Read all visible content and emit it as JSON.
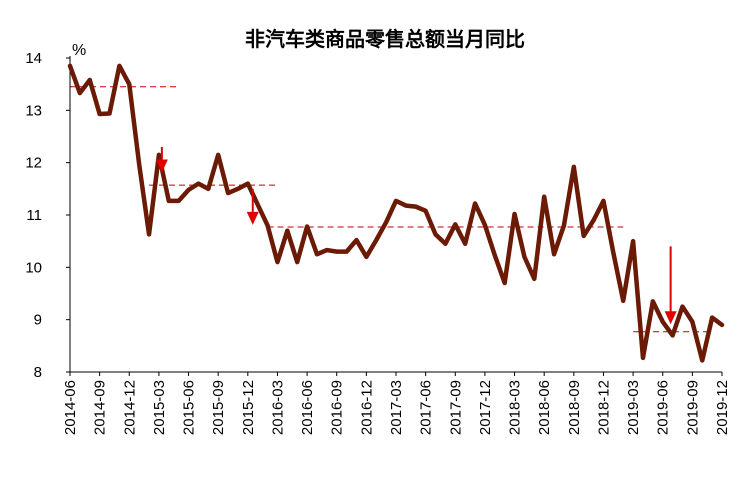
{
  "chart_data": {
    "type": "line",
    "title": "非汽车类商品零售总额当月同比",
    "unit_label": "%",
    "ylim": [
      8,
      14
    ],
    "y_ticks": [
      "8",
      "9",
      "10",
      "11",
      "12",
      "13",
      "14"
    ],
    "x_tick_labels": [
      "2014-06",
      "2014-09",
      "2014-12",
      "2015-03",
      "2015-06",
      "2015-09",
      "2015-12",
      "2016-03",
      "2016-06",
      "2016-09",
      "2016-12",
      "2017-03",
      "2017-06",
      "2017-09",
      "2017-12",
      "2018-03",
      "2018-06",
      "2018-09",
      "2018-12",
      "2019-03",
      "2019-06",
      "2019-09",
      "2019-12"
    ],
    "series": [
      {
        "color": "#6b1a05",
        "values": [
          13.85,
          13.33,
          13.58,
          12.93,
          12.94,
          13.85,
          13.5,
          11.97,
          10.63,
          12.15,
          11.27,
          11.27,
          11.48,
          11.6,
          11.5,
          12.15,
          11.42,
          11.5,
          11.6,
          11.2,
          10.8,
          10.1,
          10.7,
          10.1,
          10.78,
          10.25,
          10.33,
          10.3,
          10.3,
          10.52,
          10.2,
          10.52,
          10.86,
          11.27,
          11.18,
          11.16,
          11.08,
          10.63,
          10.45,
          10.82,
          10.45,
          11.22,
          10.81,
          10.23,
          9.7,
          11.02,
          10.2,
          9.78,
          11.35,
          10.25,
          10.8,
          11.92,
          10.6,
          10.9,
          11.27,
          10.28,
          9.36,
          10.5,
          8.27,
          9.35,
          8.96,
          8.7,
          9.25,
          8.96,
          8.22,
          9.04,
          8.9
        ]
      }
    ],
    "reference_lines": [
      {
        "y": 13.45,
        "x_start": 0,
        "x_end": 11
      },
      {
        "y": 11.57,
        "x_start": 8,
        "x_end": 21
      },
      {
        "y": 10.77,
        "x_start": 20,
        "x_end": 56
      },
      {
        "y": 8.77,
        "x_start": 57,
        "x_end": 65
      }
    ],
    "arrows": [
      {
        "x": 9.3,
        "y_from": 12.3,
        "y_to": 11.85
      },
      {
        "x": 18.5,
        "y_from": 11.5,
        "y_to": 10.85
      },
      {
        "x": 60.8,
        "y_from": 10.4,
        "y_to": 8.95
      }
    ],
    "grid": false,
    "legend": "none"
  }
}
